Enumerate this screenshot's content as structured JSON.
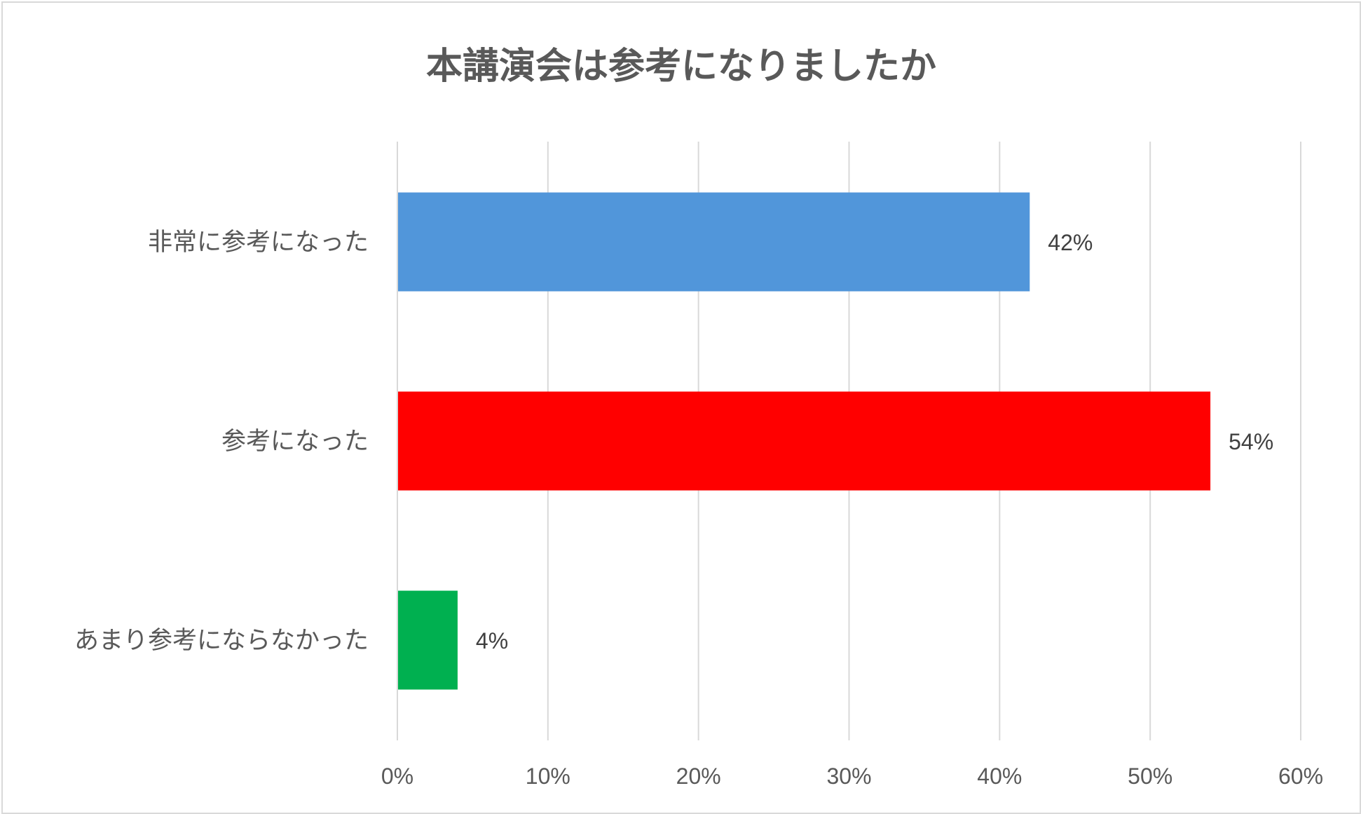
{
  "chart_data": {
    "type": "bar",
    "orientation": "horizontal",
    "title": "本講演会は参考になりましたか",
    "categories": [
      "非常に参考になった",
      "参考になった",
      "あまり参考にならなかった"
    ],
    "values": [
      42,
      54,
      4
    ],
    "data_labels": [
      "42%",
      "54%",
      "4%"
    ],
    "bar_colors": [
      "#5196da",
      "#ff0000",
      "#00b050"
    ],
    "xlim": [
      0,
      60
    ],
    "x_ticks": [
      0,
      10,
      20,
      30,
      40,
      50,
      60
    ],
    "x_tick_labels": [
      "0%",
      "10%",
      "20%",
      "30%",
      "40%",
      "50%",
      "60%"
    ],
    "grid": "vertical",
    "legend": "none",
    "grid_color": "#d9d9d9",
    "text_color": "#595959"
  }
}
